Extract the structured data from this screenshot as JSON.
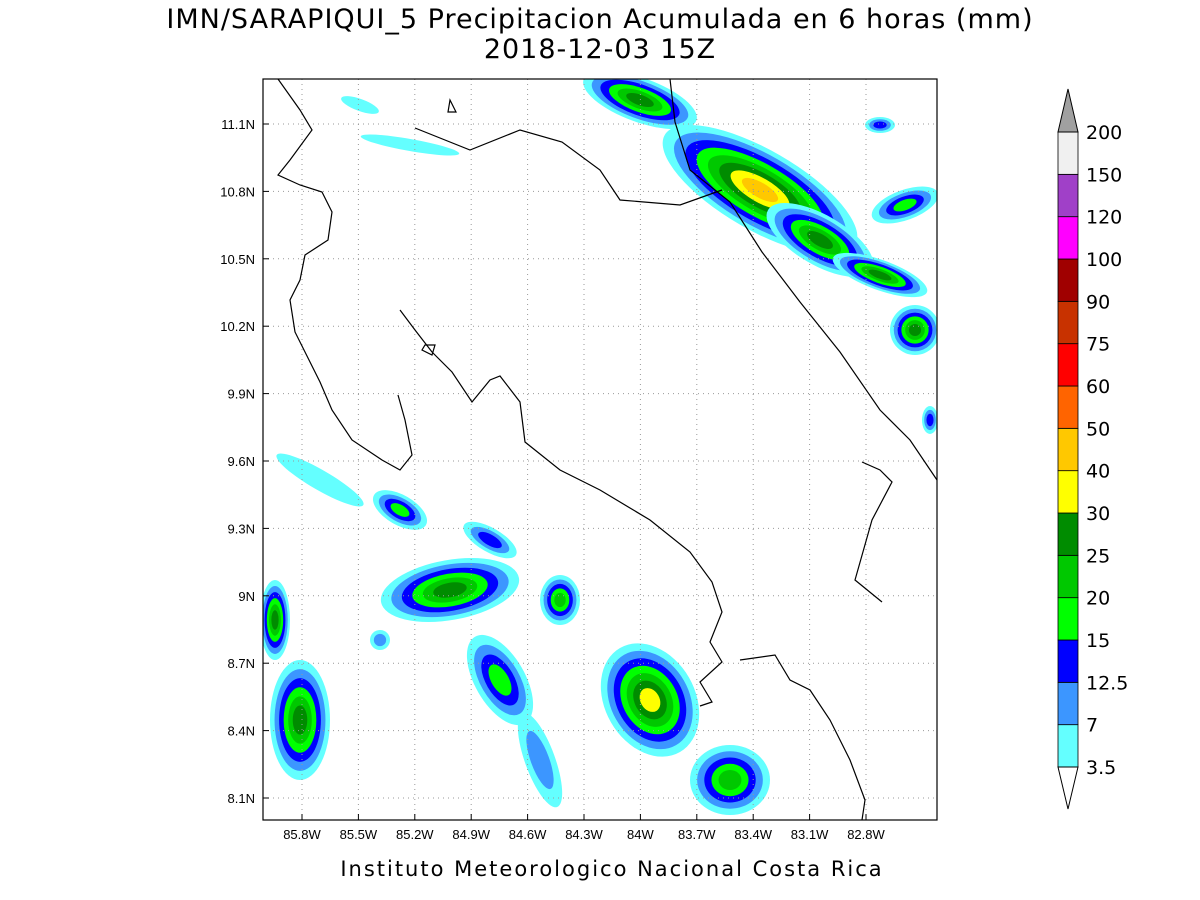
{
  "header": {
    "title": "IMN/SARAPIQUI_5 Precipitacion Acumulada en 6 horas (mm)",
    "subtitle": "2018-12-03 15Z"
  },
  "map": {
    "lat_labels": [
      "11.1N",
      "10.8N",
      "10.5N",
      "10.2N",
      "9.9N",
      "9.6N",
      "9.3N",
      "9N",
      "8.7N",
      "8.4N",
      "8.1N"
    ],
    "lon_labels": [
      "85.8W",
      "85.5W",
      "85.2W",
      "84.9W",
      "84.6W",
      "84.3W",
      "84W",
      "83.7W",
      "83.4W",
      "83.1W",
      "82.8W"
    ]
  },
  "legend": {
    "levels": [
      "3.5",
      "7",
      "12.5",
      "15",
      "20",
      "25",
      "30",
      "40",
      "50",
      "60",
      "75",
      "90",
      "100",
      "120",
      "150",
      "200"
    ],
    "colors": [
      "#64ffff",
      "#3c96ff",
      "#0000ff",
      "#00ff00",
      "#00c800",
      "#008c00",
      "#ffff00",
      "#ffc800",
      "#ff6400",
      "#ff0000",
      "#c83200",
      "#a00000",
      "#ff00ff",
      "#a040c8",
      "#f0f0f0"
    ],
    "over_color": "#a0a0a0",
    "under_color": "#ffffff"
  },
  "footer": {
    "credit": "Instituto Meteorologico Nacional Costa Rica"
  }
}
